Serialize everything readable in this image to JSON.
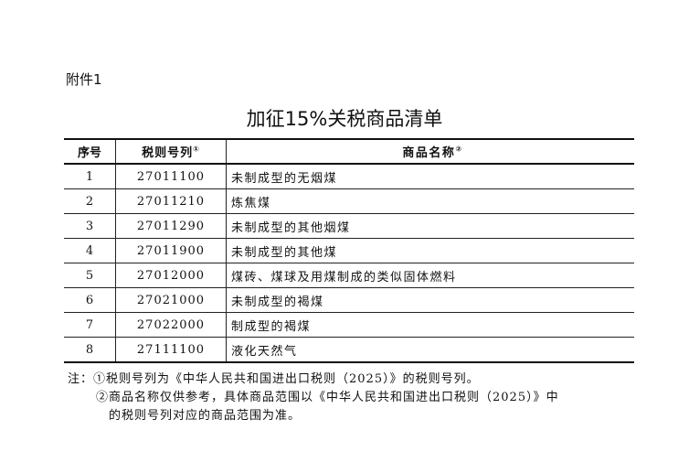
{
  "attachment": "附件1",
  "title": "加征15%关税商品清单",
  "table": {
    "headers": [
      "序号",
      "税则号列",
      "商品名称"
    ],
    "header_marks": [
      "①",
      "②"
    ],
    "rows": [
      {
        "no": "1",
        "code": "27011100",
        "name": "未制成型的无烟煤"
      },
      {
        "no": "2",
        "code": "27011210",
        "name": "炼焦煤"
      },
      {
        "no": "3",
        "code": "27011290",
        "name": "未制成型的其他烟煤"
      },
      {
        "no": "4",
        "code": "27011900",
        "name": "未制成型的其他煤"
      },
      {
        "no": "5",
        "code": "27012000",
        "name": "煤砖、煤球及用煤制成的类似固体燃料"
      },
      {
        "no": "6",
        "code": "27021000",
        "name": "未制成型的褐煤"
      },
      {
        "no": "7",
        "code": "27022000",
        "name": "制成型的褐煤"
      },
      {
        "no": "8",
        "code": "27111100",
        "name": "液化天然气"
      }
    ]
  },
  "notes": {
    "prefix": "注：",
    "note1": "①税则号列为《中华人民共和国进出口税则（2025）》的税则号列。",
    "note2_line1": "②商品名称仅供参考，具体商品范围以《中华人民共和国进出口税则（2025）》中",
    "note2_line2": "的税则号列对应的商品范围为准。"
  }
}
